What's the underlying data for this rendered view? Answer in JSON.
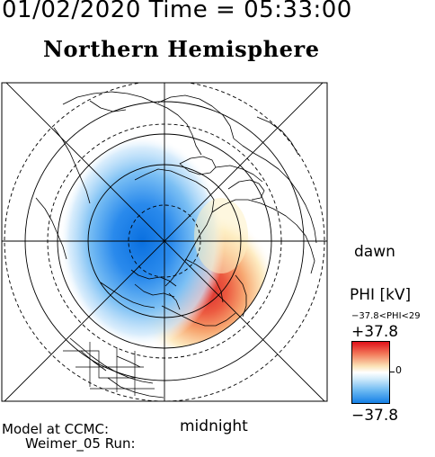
{
  "header": {
    "timestamp": "01/02/2020 Time = 05:33:00",
    "hemisphere_title": "Northern Hemisphere"
  },
  "map": {
    "projection": "polar-stereographic",
    "center": "north-pole",
    "labels": {
      "dawn": "dawn",
      "midnight": "midnight"
    },
    "potential_pattern": {
      "negative_cell": "dusk-side blue cell",
      "positive_cell": "dawn-side red cell"
    }
  },
  "colorbar": {
    "title": "PHI [kV]",
    "range_text": "−37.8<PHI<29",
    "max_label": "+37.8",
    "zero_label": "0",
    "min_label": "−37.8",
    "max_color": "#e0101a",
    "zero_color": "#ffffff",
    "min_color": "#1580e6"
  },
  "footer": {
    "model_line": "Model at CCMC:",
    "run_line": "Weimer_05 Run:"
  }
}
